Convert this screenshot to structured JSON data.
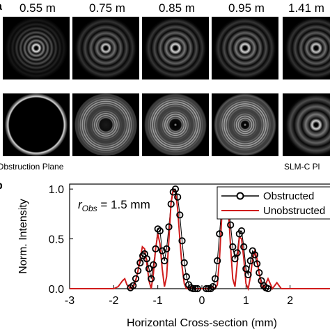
{
  "figure": {
    "panel_top_letter": "a",
    "panel_bottom_letter": "b",
    "distances": [
      "0.55 m",
      "0.75 m",
      "0.85 m",
      "0.95 m",
      "1.41 m"
    ],
    "caption_left": "Obstruction Plane",
    "caption_right": "SLM-C Pl"
  },
  "tiles": {
    "row1": [
      {
        "kind": "bessel",
        "rings": 6,
        "core_radius": 0.11,
        "brightness": 0.9
      },
      {
        "kind": "bessel",
        "rings": 4,
        "core_radius": 0.12,
        "brightness": 0.8
      },
      {
        "kind": "bessel",
        "rings": 4,
        "core_radius": 0.13,
        "brightness": 0.85
      },
      {
        "kind": "bessel",
        "rings": 4,
        "core_radius": 0.13,
        "brightness": 0.85
      },
      {
        "kind": "bessel",
        "rings": 4,
        "core_radius": 0.13,
        "brightness": 0.8
      }
    ],
    "row2": [
      {
        "kind": "obstructed",
        "dark_radius": 0.43,
        "annulus": 0.5,
        "brightness": 0.85
      },
      {
        "kind": "annular",
        "dark_radius": 0.2,
        "annulus": 0.45,
        "brightness": 0.75
      },
      {
        "kind": "annular-core",
        "dark_radius": 0.18,
        "annulus": 0.45,
        "brightness": 0.8
      },
      {
        "kind": "annular-core",
        "dark_radius": 0.12,
        "annulus": 0.42,
        "brightness": 0.8
      },
      {
        "kind": "bessel",
        "rings": 3,
        "core_radius": 0.13,
        "brightness": 0.85
      }
    ]
  },
  "annotation": {
    "r_symbol": "r",
    "r_subscript": "Obs",
    "r_value": " = 1.5 mm"
  },
  "colors": {
    "obstructed": "#000000",
    "unobstructed": "#d01c1c"
  },
  "chart_data": {
    "type": "line",
    "xlabel": "Horizontal Cross-section (mm)",
    "ylabel": "Norm. Intensity",
    "xlim": [
      -3,
      3
    ],
    "ylim": [
      0,
      1.05
    ],
    "xticks": [
      "-3",
      "-2",
      "-1",
      "0",
      "1",
      "2"
    ],
    "yticks": [
      "0.0",
      "0.5",
      "1.0"
    ],
    "legend_position": "top-right",
    "series": [
      {
        "name": "Obstructed",
        "style": "markers",
        "x": [
          -1.62,
          -1.56,
          -1.5,
          -1.45,
          -1.4,
          -1.34,
          -1.3,
          -1.25,
          -1.2,
          -1.15,
          -1.1,
          -1.05,
          -1.0,
          -0.95,
          -0.9,
          -0.85,
          -0.8,
          -0.75,
          -0.7,
          -0.65,
          -0.6,
          -0.55,
          -0.5,
          -0.45,
          -0.4,
          -0.35,
          -0.3,
          -0.25,
          -0.2,
          -0.15,
          -0.1,
          0.1,
          0.15,
          0.2,
          0.25,
          0.3,
          0.35,
          0.4,
          0.45,
          0.5,
          0.55,
          0.6,
          0.65,
          0.7,
          0.75,
          0.8,
          0.85,
          0.9,
          0.95,
          1.0,
          1.05,
          1.1,
          1.15,
          1.2,
          1.25,
          1.3,
          1.35,
          1.4,
          1.45,
          1.5
        ],
        "y": [
          0.01,
          0.03,
          0.1,
          0.18,
          0.26,
          0.33,
          0.35,
          0.3,
          0.2,
          0.1,
          0.24,
          0.4,
          0.6,
          0.58,
          0.38,
          0.28,
          0.4,
          0.62,
          0.85,
          0.97,
          1.0,
          0.92,
          0.74,
          0.48,
          0.26,
          0.12,
          0.04,
          0.01,
          0.0,
          0.0,
          0.0,
          0.0,
          0.0,
          0.0,
          0.02,
          0.1,
          0.28,
          0.55,
          0.82,
          0.96,
          0.98,
          0.86,
          0.64,
          0.42,
          0.3,
          0.36,
          0.55,
          0.58,
          0.42,
          0.2,
          0.14,
          0.28,
          0.38,
          0.34,
          0.25,
          0.16,
          0.08,
          0.03,
          0.01,
          0.0
        ]
      },
      {
        "name": "Unobstructed",
        "style": "line",
        "x": [
          -3.0,
          -2.4,
          -2.0,
          -1.9,
          -1.8,
          -1.75,
          -1.7,
          -1.62,
          -1.55,
          -1.5,
          -1.45,
          -1.4,
          -1.35,
          -1.3,
          -1.25,
          -1.2,
          -1.15,
          -1.1,
          -1.05,
          -1.0,
          -0.95,
          -0.9,
          -0.85,
          -0.8,
          -0.75,
          -0.7,
          -0.65,
          -0.6,
          -0.55,
          -0.5,
          -0.45,
          -0.4,
          -0.35,
          -0.3,
          -0.25,
          -0.2,
          -0.1,
          0.0,
          0.1,
          0.2,
          0.25,
          0.3,
          0.35,
          0.4,
          0.45,
          0.5,
          0.55,
          0.6,
          0.65,
          0.7,
          0.75,
          0.8,
          0.85,
          0.9,
          0.95,
          1.0,
          1.05,
          1.1,
          1.15,
          1.2,
          1.25,
          1.3,
          1.35,
          1.4,
          1.45,
          1.5,
          1.55,
          1.6,
          1.7,
          1.8,
          2.0,
          2.4,
          3.0
        ],
        "y": [
          0.0,
          0.0,
          0.0,
          0.02,
          0.08,
          0.1,
          0.04,
          0.0,
          0.02,
          0.08,
          0.18,
          0.3,
          0.42,
          0.4,
          0.26,
          0.08,
          0.0,
          0.15,
          0.4,
          0.55,
          0.45,
          0.2,
          0.02,
          0.12,
          0.48,
          0.86,
          1.0,
          0.98,
          0.8,
          0.5,
          0.22,
          0.05,
          0.0,
          0.0,
          0.02,
          0.0,
          0.0,
          0.0,
          0.0,
          0.0,
          0.02,
          0.0,
          0.04,
          0.3,
          0.72,
          0.98,
          1.0,
          0.8,
          0.42,
          0.1,
          0.02,
          0.25,
          0.52,
          0.5,
          0.3,
          0.05,
          0.0,
          0.12,
          0.3,
          0.38,
          0.3,
          0.15,
          0.04,
          0.0,
          0.05,
          0.1,
          0.05,
          0.0,
          0.06,
          0.0,
          0.0,
          0.0,
          0.0
        ]
      }
    ]
  }
}
